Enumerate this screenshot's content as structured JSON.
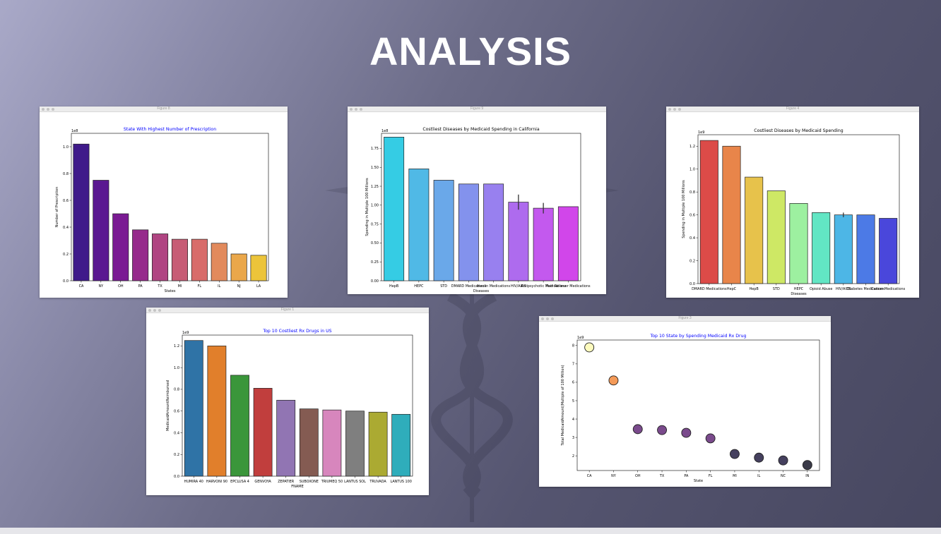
{
  "slide": {
    "title": "ANALYSIS"
  },
  "windows": [
    {
      "title": "Figure 8"
    },
    {
      "title": "Figure 9"
    },
    {
      "title": "Figure 4"
    },
    {
      "title": "Figure 1"
    },
    {
      "title": "Figure 3"
    }
  ],
  "chart_data": [
    {
      "type": "bar",
      "title": "State With Highest Number of Prescription",
      "title_color": "#0000ff",
      "xlabel": "States",
      "ylabel": "Number of Prescription",
      "offset_label": "1e8",
      "categories": [
        "CA",
        "NY",
        "OH",
        "PA",
        "TX",
        "MI",
        "FL",
        "IL",
        "NJ",
        "LA"
      ],
      "values": [
        1.02,
        0.75,
        0.5,
        0.38,
        0.35,
        0.31,
        0.31,
        0.28,
        0.2,
        0.19
      ],
      "ylim": [
        0,
        1.1
      ],
      "yticks": [
        "0.0",
        "0.2",
        "0.4",
        "0.6",
        "0.8",
        "1.0"
      ],
      "colors": [
        "#3f1a8a",
        "#5a1891",
        "#7a1a93",
        "#962a8c",
        "#b04482",
        "#c75c75",
        "#d86c6a",
        "#e28a5c",
        "#eaa74a",
        "#ecc43a"
      ]
    },
    {
      "type": "bar",
      "title": "Costliest Diseases by Medicaid Spending in California",
      "title_color": "#000000",
      "xlabel": "Diseases",
      "ylabel": "Spending in Multiple 100 Millions",
      "offset_label": "1e8",
      "categories": [
        "HepB",
        "HEPC",
        "STD",
        "DMARD Medications",
        "Insulin Medications",
        "HIV/AIDS",
        "Antipsychotic Medications",
        "Pain Reliever Medications"
      ],
      "values": [
        1.9,
        1.48,
        1.33,
        1.28,
        1.28,
        1.04,
        0.96,
        0.98
      ],
      "errors": [
        0,
        0,
        0,
        0,
        0,
        0.1,
        0.07,
        0
      ],
      "ylim": [
        0,
        1.95
      ],
      "yticks": [
        "0.00",
        "0.25",
        "0.50",
        "0.75",
        "1.00",
        "1.25",
        "1.50",
        "1.75"
      ],
      "colors": [
        "#35cce4",
        "#50b9e6",
        "#6aa8e9",
        "#8392ed",
        "#9880ef",
        "#ae6bee",
        "#c359ee",
        "#d146ea"
      ]
    },
    {
      "type": "bar",
      "title": "Costliest Diseases by Medicaid Spending",
      "title_color": "#000000",
      "xlabel": "Diseases",
      "ylabel": "Spending in Multiple 100 Millions",
      "offset_label": "1e9",
      "categories": [
        "DMARD Medications",
        "HepC",
        "HepB",
        "STD",
        "HEPC",
        "Opioid Abuse",
        "HIV/AIDS",
        "Diabetes Medications",
        "Cancer Medications"
      ],
      "values": [
        1.25,
        1.2,
        0.93,
        0.81,
        0.7,
        0.62,
        0.6,
        0.6,
        0.57
      ],
      "errors": [
        0,
        0,
        0,
        0,
        0,
        0,
        0.02,
        0,
        0
      ],
      "ylim": [
        0,
        1.3
      ],
      "yticks": [
        "0.0",
        "0.2",
        "0.4",
        "0.6",
        "0.8",
        "1.0",
        "1.2"
      ],
      "colors": [
        "#dc4b48",
        "#e8854a",
        "#e7c24b",
        "#cee865",
        "#9df0a0",
        "#62e6c4",
        "#4db6e6",
        "#4c7ae6",
        "#4a47db"
      ]
    },
    {
      "type": "bar",
      "title": "Top 10 Costliest Rx Drugs in US",
      "title_color": "#0000ff",
      "xlabel": "FNAME",
      "ylabel": "MedicaidAmountReimbursed",
      "offset_label": "1e9",
      "categories": [
        "HUMIRA 40",
        "HARVONI 90",
        "EPCLUSA 4",
        "GENVOYA",
        "ZEPATIER",
        "SUBOXONE",
        "TRIUMEQ 50",
        "LANTUS SOL",
        "TRUVADA",
        "LANTUS 100"
      ],
      "values": [
        1.25,
        1.2,
        0.93,
        0.81,
        0.7,
        0.62,
        0.61,
        0.6,
        0.59,
        0.57
      ],
      "ylim": [
        0,
        1.3
      ],
      "yticks": [
        "0.0",
        "0.2",
        "0.4",
        "0.6",
        "0.8",
        "1.0",
        "1.2"
      ],
      "colors": [
        "#2f73a6",
        "#e17f2b",
        "#3a963a",
        "#c13e3d",
        "#9175b3",
        "#845b52",
        "#d786bd",
        "#7f7f7f",
        "#abaa32",
        "#2fadbb"
      ]
    },
    {
      "type": "scatter",
      "title": "Top 10 State by Spending Medicaid Rx Drug",
      "title_color": "#0000ff",
      "xlabel": "State",
      "ylabel": "Total MedicaidAmount(Multiple of 100 Million)",
      "offset_label": "1e9",
      "categories": [
        "CA",
        "NY",
        "OH",
        "TX",
        "PA",
        "FL",
        "MI",
        "IL",
        "NC",
        "IN"
      ],
      "values": [
        7.9,
        6.1,
        3.45,
        3.4,
        3.25,
        2.95,
        2.1,
        1.9,
        1.75,
        1.5
      ],
      "ylim": [
        1.2,
        8.3
      ],
      "yticks": [
        "2",
        "3",
        "4",
        "5",
        "6",
        "7",
        "8"
      ],
      "colors": [
        "#fdfbbe",
        "#f49a58",
        "#7a4a8c",
        "#7a4a8c",
        "#7a4a8c",
        "#7a4a8c",
        "#45405e",
        "#45405e",
        "#45405e",
        "#3a3a48"
      ]
    }
  ]
}
